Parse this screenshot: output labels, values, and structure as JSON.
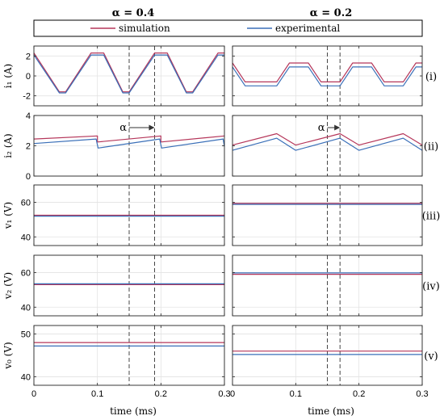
{
  "column_titles": [
    "α = 0.4",
    "α = 0.2"
  ],
  "legend": {
    "entries": [
      "simulation",
      "experimental"
    ]
  },
  "colors": {
    "simulation": "#b5365a",
    "experimental": "#3a6fb8"
  },
  "chart_data": {
    "type": "line",
    "x_unit_label": "time (ms)",
    "xlim": [
      0,
      0.3
    ],
    "x_ticks": [
      0,
      0.1,
      0.2,
      0.3
    ],
    "x_tick_labels": [
      "0",
      "0.1",
      "0.2",
      "0.3"
    ],
    "series_names": [
      "simulation",
      "experimental"
    ],
    "rows": [
      {
        "panel_label": "(i)",
        "ylabel": "i₁ (A)",
        "ylim": [
          -3,
          3
        ],
        "y_ticks": [
          -2,
          0,
          2
        ],
        "y_tick_labels": [
          "-2",
          "0",
          "2"
        ],
        "columns": [
          {
            "alpha": 0.4,
            "simulation": {
              "x": [
                0,
                0.04,
                0.05,
                0.09,
                0.11,
                0.14,
                0.15,
                0.19,
                0.21,
                0.24,
                0.25,
                0.29,
                0.3
              ],
              "y": [
                2.3,
                -1.6,
                -1.6,
                2.3,
                2.3,
                -1.6,
                -1.6,
                2.3,
                2.3,
                -1.6,
                -1.6,
                2.3,
                2.3
              ]
            },
            "experimental": {
              "x": [
                0,
                0.04,
                0.05,
                0.09,
                0.11,
                0.14,
                0.15,
                0.19,
                0.21,
                0.24,
                0.25,
                0.29,
                0.3
              ],
              "y": [
                2.1,
                -1.7,
                -1.7,
                2.1,
                2.1,
                -1.7,
                -1.7,
                2.1,
                2.1,
                -1.7,
                -1.7,
                2.1,
                2.1
              ]
            }
          },
          {
            "alpha": 0.2,
            "simulation": {
              "x": [
                0,
                0.02,
                0.07,
                0.09,
                0.12,
                0.14,
                0.17,
                0.19,
                0.22,
                0.24,
                0.27,
                0.29,
                0.3
              ],
              "y": [
                1.3,
                -0.6,
                -0.6,
                1.3,
                1.3,
                -0.6,
                -0.6,
                1.3,
                1.3,
                -0.6,
                -0.6,
                1.3,
                1.3
              ]
            },
            "experimental": {
              "x": [
                0,
                0.02,
                0.07,
                0.09,
                0.12,
                0.14,
                0.17,
                0.19,
                0.22,
                0.24,
                0.27,
                0.29,
                0.3
              ],
              "y": [
                0.9,
                -1.0,
                -1.0,
                0.9,
                0.9,
                -1.0,
                -1.0,
                0.9,
                0.9,
                -1.0,
                -1.0,
                0.9,
                0.9
              ]
            }
          }
        ]
      },
      {
        "panel_label": "(ii)",
        "ylabel": "i₂ (A)",
        "ylim": [
          0,
          4
        ],
        "y_ticks": [
          0,
          2,
          4
        ],
        "y_tick_labels": [
          "0",
          "2",
          "4"
        ],
        "annotation": "α",
        "columns": [
          {
            "alpha": 0.4,
            "simulation": {
              "x": [
                0,
                0.1,
                0.1,
                0.2,
                0.2,
                0.3
              ],
              "y": [
                2.45,
                2.65,
                2.25,
                2.65,
                2.25,
                2.65
              ]
            },
            "experimental": {
              "x": [
                0,
                0.098,
                0.101,
                0.198,
                0.201,
                0.298,
                0.3
              ],
              "y": [
                2.15,
                2.45,
                1.85,
                2.45,
                1.85,
                2.45,
                1.95
              ]
            }
          },
          {
            "alpha": 0.2,
            "simulation": {
              "x": [
                0,
                0.07,
                0.1,
                0.17,
                0.2,
                0.27,
                0.3
              ],
              "y": [
                2.05,
                2.8,
                2.05,
                2.8,
                2.05,
                2.8,
                2.05
              ]
            },
            "experimental": {
              "x": [
                0,
                0.07,
                0.1,
                0.17,
                0.2,
                0.27,
                0.3
              ],
              "y": [
                1.7,
                2.5,
                1.7,
                2.5,
                1.7,
                2.5,
                1.7
              ]
            }
          }
        ]
      },
      {
        "panel_label": "(iii)",
        "ylabel": "v₁ (V)",
        "ylim": [
          35,
          70
        ],
        "y_ticks": [
          40,
          60
        ],
        "y_tick_labels": [
          "40",
          "60"
        ],
        "columns": [
          {
            "alpha": 0.4,
            "simulation": {
              "x": [
                0,
                0.3
              ],
              "y": [
                52.5,
                52.5
              ]
            },
            "experimental": {
              "x": [
                0,
                0.3
              ],
              "y": [
                52.0,
                52.0
              ]
            }
          },
          {
            "alpha": 0.2,
            "simulation": {
              "x": [
                0,
                0.3
              ],
              "y": [
                59.3,
                59.3
              ]
            },
            "experimental": {
              "x": [
                0,
                0.3
              ],
              "y": [
                58.8,
                58.8
              ]
            }
          }
        ]
      },
      {
        "panel_label": "(iv)",
        "ylabel": "v₂ (V)",
        "ylim": [
          35,
          70
        ],
        "y_ticks": [
          40,
          60
        ],
        "y_tick_labels": [
          "40",
          "60"
        ],
        "columns": [
          {
            "alpha": 0.4,
            "simulation": {
              "x": [
                0,
                0.3
              ],
              "y": [
                53.0,
                53.0
              ]
            },
            "experimental": {
              "x": [
                0,
                0.3
              ],
              "y": [
                53.5,
                53.5
              ]
            }
          },
          {
            "alpha": 0.2,
            "simulation": {
              "x": [
                0,
                0.3
              ],
              "y": [
                59.0,
                59.0
              ]
            },
            "experimental": {
              "x": [
                0,
                0.3
              ],
              "y": [
                59.8,
                59.8
              ]
            }
          }
        ]
      },
      {
        "panel_label": "(v)",
        "ylabel": "v₀ (V)",
        "ylim": [
          38,
          52
        ],
        "y_ticks": [
          40,
          50
        ],
        "y_tick_labels": [
          "40",
          "50"
        ],
        "columns": [
          {
            "alpha": 0.4,
            "simulation": {
              "x": [
                0,
                0.3
              ],
              "y": [
                48.0,
                48.0
              ]
            },
            "experimental": {
              "x": [
                0,
                0.3
              ],
              "y": [
                47.2,
                47.2
              ]
            }
          },
          {
            "alpha": 0.2,
            "simulation": {
              "x": [
                0,
                0.3
              ],
              "y": [
                46.0,
                46.0
              ]
            },
            "experimental": {
              "x": [
                0,
                0.3
              ],
              "y": [
                45.2,
                45.2
              ]
            }
          }
        ]
      }
    ],
    "dashed_markers": [
      {
        "alpha": 0.4,
        "x": [
          0.15,
          0.19
        ]
      },
      {
        "alpha": 0.2,
        "x": [
          0.15,
          0.17
        ]
      }
    ],
    "grid": true,
    "legend_position": "top"
  }
}
